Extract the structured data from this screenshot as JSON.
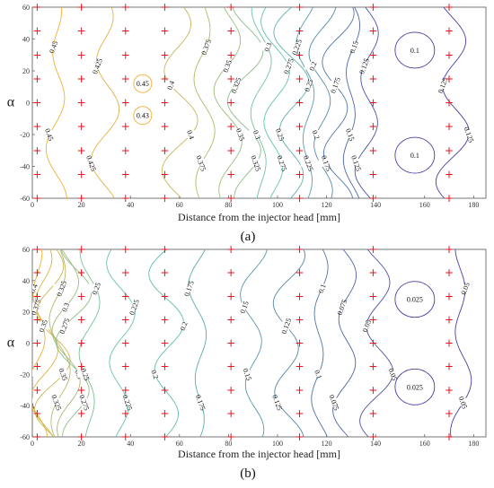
{
  "chart_data": [
    {
      "type": "contour",
      "panel_label": "(a)",
      "xlabel": "Distance from the injector head [mm]",
      "ylabel": "α",
      "xlim": [
        0,
        185
      ],
      "ylim": [
        -60,
        60
      ],
      "xticks": [
        "0",
        "20",
        "40",
        "60",
        "80",
        "100",
        "120",
        "140",
        "160",
        "180"
      ],
      "yticks": [
        "60",
        "40",
        "20",
        "0",
        "-20",
        "-40",
        "-60"
      ],
      "colors": {
        "high": "#f2b035",
        "mid": "#5fc5b0",
        "low": "#4a3fa0",
        "marker": "#e8121e"
      },
      "measurement_x": [
        2,
        20,
        38,
        54,
        81,
        109,
        139,
        170
      ],
      "measurement_alpha": [
        60,
        45,
        30,
        15,
        0,
        -15,
        -30,
        -45,
        -60
      ],
      "contours": [
        {
          "level": "0.45",
          "x": 10
        },
        {
          "level": "0.425",
          "x": 30
        },
        {
          "level": "0.4",
          "x": 60
        },
        {
          "level": "0.375",
          "x": 70
        },
        {
          "level": "0.35",
          "x": 80
        },
        {
          "level": "0.325",
          "x": 87
        },
        {
          "level": "0.3",
          "x": 93
        },
        {
          "level": "0.275",
          "x": 99
        },
        {
          "level": "0.25",
          "x": 106
        },
        {
          "level": "0.225",
          "x": 112
        },
        {
          "level": "0.2",
          "x": 118
        },
        {
          "level": "0.175",
          "x": 124
        },
        {
          "level": "0.15",
          "x": 130
        },
        {
          "level": "0.125",
          "x": 137
        },
        {
          "level": "0.125",
          "x": 172
        }
      ],
      "loops": [
        {
          "level": "0.45",
          "x": 45,
          "alpha": 12
        },
        {
          "level": "0.43",
          "x": 45,
          "alpha": -8
        },
        {
          "level": "0.1",
          "x": 156,
          "alpha": 33
        },
        {
          "level": "0.1",
          "x": 156,
          "alpha": -33
        }
      ]
    },
    {
      "type": "contour",
      "panel_label": "(b)",
      "xlabel": "Distance from the injector head [mm]",
      "ylabel": "α",
      "xlim": [
        0,
        185
      ],
      "ylim": [
        -60,
        60
      ],
      "xticks": [
        "0",
        "20",
        "40",
        "60",
        "80",
        "100",
        "120",
        "140",
        "160",
        "180"
      ],
      "yticks": [
        "60",
        "40",
        "20",
        "0",
        "-20",
        "-40",
        "-60"
      ],
      "colors": {
        "high": "#f2b035",
        "mid": "#5fc5b0",
        "low": "#4a3fa0",
        "marker": "#e8121e"
      },
      "measurement_x": [
        2,
        20,
        38,
        54,
        81,
        109,
        139,
        170
      ],
      "measurement_alpha": [
        60,
        45,
        30,
        15,
        0,
        -15,
        -30,
        -45,
        -60
      ],
      "contours": [
        {
          "level": "0.4",
          "x": 2
        },
        {
          "level": "0.375",
          "x": 5
        },
        {
          "level": "0.35",
          "x": 8
        },
        {
          "level": "0.325",
          "x": 11
        },
        {
          "level": "0.3",
          "x": 14
        },
        {
          "level": "0.275",
          "x": 17
        },
        {
          "level": "0.25",
          "x": 23
        },
        {
          "level": "0.225",
          "x": 36
        },
        {
          "level": "0.2",
          "x": 55
        },
        {
          "level": "0.175",
          "x": 68
        },
        {
          "level": "0.15",
          "x": 90
        },
        {
          "level": "0.125",
          "x": 104
        },
        {
          "level": "0.1",
          "x": 117
        },
        {
          "level": "0.075",
          "x": 128
        },
        {
          "level": "0.05",
          "x": 141
        },
        {
          "level": "0.05",
          "x": 175
        }
      ],
      "loops": [
        {
          "level": "0.025",
          "x": 156,
          "alpha": 28
        },
        {
          "level": "0.025",
          "x": 156,
          "alpha": -28
        }
      ]
    }
  ]
}
